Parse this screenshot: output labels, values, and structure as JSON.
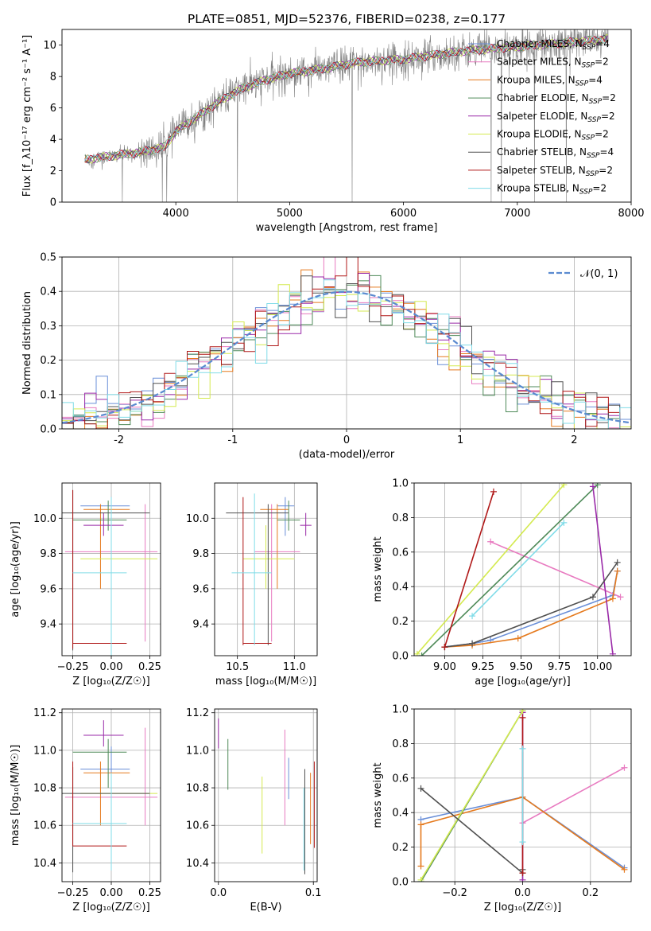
{
  "title": "PLATE=0851, MJD=52376, FIBERID=0238, z=0.177",
  "colors": {
    "Chabrier MILES": "#6a8fd8",
    "Salpeter MILES": "#e87ac0",
    "Kroupa MILES": "#e57a1e",
    "Chabrier ELODIE": "#4e8a58",
    "Salpeter ELODIE": "#9a2aa8",
    "Kroupa ELODIE": "#d4ea50",
    "Chabrier STELIB": "#505050",
    "Salpeter STELIB": "#b01818",
    "Kroupa STELIB": "#80dce8",
    "data": "#808080",
    "normal": "#5a8ad0"
  },
  "chart_data": [
    {
      "id": "spectrum",
      "type": "line",
      "xlabel": "wavelength [Angstrom, rest frame]",
      "ylabel": "Flux [f_λ10⁻¹⁷ erg cm⁻² s⁻¹ A⁻¹]",
      "xlim": [
        3000,
        8000
      ],
      "ylim": [
        0,
        11
      ],
      "xticks": [
        4000,
        5000,
        6000,
        7000,
        8000
      ],
      "yticks": [
        0,
        2,
        4,
        6,
        8,
        10
      ],
      "legend_position": "top-right",
      "legend": [
        {
          "label": "Chabrier MILES, N",
          "sub": "SSP",
          "tail": "=4",
          "series": "Chabrier MILES"
        },
        {
          "label": "Salpeter MILES, N",
          "sub": "SSP",
          "tail": "=2",
          "series": "Salpeter MILES"
        },
        {
          "label": "Kroupa MILES, N",
          "sub": "SSP",
          "tail": "=4",
          "series": "Kroupa MILES"
        },
        {
          "label": "Chabrier ELODIE, N",
          "sub": "SSP",
          "tail": "=2",
          "series": "Chabrier ELODIE"
        },
        {
          "label": "Salpeter ELODIE, N",
          "sub": "SSP",
          "tail": "=2",
          "series": "Salpeter ELODIE"
        },
        {
          "label": "Kroupa ELODIE, N",
          "sub": "SSP",
          "tail": "=2",
          "series": "Kroupa ELODIE"
        },
        {
          "label": "Chabrier STELIB, N",
          "sub": "SSP",
          "tail": "=4",
          "series": "Chabrier STELIB"
        },
        {
          "label": "Salpeter STELIB, N",
          "sub": "SSP",
          "tail": "=2",
          "series": "Salpeter STELIB"
        },
        {
          "label": "Kroupa STELIB, N",
          "sub": "SSP",
          "tail": "=2",
          "series": "Kroupa STELIB"
        }
      ],
      "continuum": [
        [
          3200,
          2.7
        ],
        [
          3500,
          3.0
        ],
        [
          3700,
          3.2
        ],
        [
          3900,
          3.5
        ],
        [
          4000,
          4.5
        ],
        [
          4200,
          5.5
        ],
        [
          4400,
          6.5
        ],
        [
          4600,
          7.3
        ],
        [
          4800,
          7.8
        ],
        [
          5000,
          8.2
        ],
        [
          5300,
          8.5
        ],
        [
          5600,
          8.9
        ],
        [
          6000,
          9.1
        ],
        [
          6500,
          9.6
        ],
        [
          7000,
          9.9
        ],
        [
          7500,
          10.2
        ],
        [
          7800,
          10.4
        ]
      ],
      "dropouts": [
        3530,
        3880,
        3920,
        4540,
        5550,
        6770,
        6860,
        7150,
        7430
      ],
      "model_range": [
        3200,
        7450
      ]
    },
    {
      "id": "residuals",
      "type": "histogram",
      "xlabel": "(data-model)/error",
      "ylabel": "Normed distribution",
      "xlim": [
        -2.5,
        2.5
      ],
      "ylim": [
        0,
        0.5
      ],
      "xticks": [
        -2,
        -1,
        0,
        1,
        2
      ],
      "yticks": [
        0.0,
        0.1,
        0.2,
        0.3,
        0.4,
        0.5
      ],
      "bin_width": 0.1,
      "legend_position": "top-right",
      "legend_label": "𝒩(0, 1)",
      "reference": "normal(0,1)"
    },
    {
      "id": "z-age",
      "type": "scatter",
      "xlabel": "Z [log₁₀(Z/Z☉)]",
      "ylabel": "age  [log₁₀(age/yr)]",
      "xlim": [
        -0.32,
        0.32
      ],
      "ylim": [
        9.22,
        10.2
      ],
      "xticks": [
        -0.25,
        0.0,
        0.25
      ],
      "xticklabels": [
        "−0.25",
        "0.00",
        "0.25"
      ],
      "yticks": [
        9.4,
        9.6,
        9.8,
        10.0
      ],
      "points": [
        {
          "series": "Chabrier MILES",
          "x": 0.0,
          "y": 10.07,
          "xe": [
            -0.2,
            0.12
          ],
          "ye": [
            9.95,
            10.12
          ]
        },
        {
          "series": "Salpeter MILES",
          "x": 0.22,
          "y": 9.81,
          "xe": [
            -0.3,
            0.3
          ],
          "ye": [
            9.3,
            10.08
          ]
        },
        {
          "series": "Kroupa MILES",
          "x": -0.07,
          "y": 10.05,
          "xe": [
            -0.18,
            0.12
          ],
          "ye": [
            9.6,
            10.08
          ]
        },
        {
          "series": "Chabrier ELODIE",
          "x": -0.02,
          "y": 9.99,
          "xe": [
            -0.25,
            0.1
          ],
          "ye": [
            9.93,
            10.1
          ]
        },
        {
          "series": "Salpeter ELODIE",
          "x": -0.05,
          "y": 9.96,
          "xe": [
            -0.18,
            0.08
          ],
          "ye": [
            9.9,
            10.03
          ]
        },
        {
          "series": "Kroupa ELODIE",
          "x": 0.0,
          "y": 9.77,
          "xe": [
            -0.2,
            0.3
          ],
          "ye": [
            9.6,
            9.96
          ]
        },
        {
          "series": "Chabrier STELIB",
          "x": -0.25,
          "y": 10.03,
          "xe": [
            -0.32,
            0.25
          ],
          "ye": [
            9.25,
            10.16
          ]
        },
        {
          "series": "Salpeter STELIB",
          "x": -0.25,
          "y": 9.29,
          "xe": [
            -0.25,
            0.1
          ],
          "ye": [
            9.26,
            10.16
          ]
        },
        {
          "series": "Kroupa STELIB",
          "x": 0.0,
          "y": 9.69,
          "xe": [
            -0.25,
            0.1
          ],
          "ye": [
            9.22,
            10.12
          ]
        }
      ]
    },
    {
      "id": "mass-age",
      "type": "scatter",
      "xlabel": "mass [log₁₀(M/M☉)]",
      "ylabel": "",
      "xlim": [
        10.3,
        11.2
      ],
      "ylim": [
        9.22,
        10.2
      ],
      "xticks": [
        10.5,
        11.0
      ],
      "xticklabels": [
        "10.5",
        "11.0"
      ],
      "yticks": [
        9.4,
        9.6,
        9.8,
        10.0
      ],
      "points": [
        {
          "series": "Chabrier MILES",
          "x": 10.92,
          "y": 10.07,
          "xe": [
            10.85,
            11.0
          ],
          "ye": [
            9.9,
            10.12
          ]
        },
        {
          "series": "Salpeter MILES",
          "x": 10.8,
          "y": 9.81,
          "xe": [
            10.65,
            11.05
          ],
          "ye": [
            9.3,
            10.08
          ]
        },
        {
          "series": "Kroupa MILES",
          "x": 10.85,
          "y": 10.05,
          "xe": [
            10.7,
            10.95
          ],
          "ye": [
            9.6,
            10.08
          ]
        },
        {
          "series": "Chabrier ELODIE",
          "x": 10.95,
          "y": 9.99,
          "xe": [
            10.85,
            11.05
          ],
          "ye": [
            9.93,
            10.1
          ]
        },
        {
          "series": "Salpeter ELODIE",
          "x": 11.1,
          "y": 9.96,
          "xe": [
            11.05,
            11.15
          ],
          "ye": [
            9.9,
            10.03
          ]
        },
        {
          "series": "Kroupa ELODIE",
          "x": 10.75,
          "y": 9.77,
          "xe": [
            10.55,
            11.0
          ],
          "ye": [
            9.6,
            9.96
          ]
        },
        {
          "series": "Chabrier STELIB",
          "x": 10.77,
          "y": 10.03,
          "xe": [
            10.4,
            10.95
          ],
          "ye": [
            9.28,
            10.08
          ]
        },
        {
          "series": "Salpeter STELIB",
          "x": 10.55,
          "y": 9.29,
          "xe": [
            10.55,
            10.8
          ],
          "ye": [
            9.28,
            10.12
          ]
        },
        {
          "series": "Kroupa STELIB",
          "x": 10.65,
          "y": 9.69,
          "xe": [
            10.45,
            10.8
          ],
          "ye": [
            9.28,
            10.14
          ]
        }
      ]
    },
    {
      "id": "age-weight",
      "type": "line",
      "xlabel": "age  [log₁₀(age/yr)]",
      "ylabel": "mass weight",
      "xlim": [
        8.8,
        10.22
      ],
      "ylim": [
        0,
        1
      ],
      "xticks": [
        9.0,
        9.25,
        9.5,
        9.75,
        10.0
      ],
      "xticklabels": [
        "9.00",
        "9.25",
        "9.50",
        "9.75",
        "10.00"
      ],
      "yticks": [
        0.0,
        0.2,
        0.4,
        0.6,
        0.8,
        1.0
      ],
      "series": [
        {
          "name": "Chabrier MILES",
          "points": [
            [
              9.0,
              0.05
            ],
            [
              9.18,
              0.07
            ],
            [
              9.3,
              0.09
            ],
            [
              10.1,
              0.35
            ],
            [
              10.13,
              0.49
            ]
          ]
        },
        {
          "name": "Salpeter MILES",
          "points": [
            [
              9.3,
              0.66
            ],
            [
              10.15,
              0.34
            ]
          ]
        },
        {
          "name": "Kroupa MILES",
          "points": [
            [
              9.0,
              0.05
            ],
            [
              9.18,
              0.06
            ],
            [
              9.48,
              0.1
            ],
            [
              10.1,
              0.33
            ],
            [
              10.13,
              0.49
            ]
          ]
        },
        {
          "name": "Chabrier ELODIE",
          "points": [
            [
              8.85,
              0.0
            ],
            [
              10.0,
              0.99
            ]
          ]
        },
        {
          "name": "Salpeter ELODIE",
          "points": [
            [
              9.97,
              0.98
            ],
            [
              10.1,
              0.01
            ]
          ]
        },
        {
          "name": "Kroupa ELODIE",
          "points": [
            [
              8.82,
              0.01
            ],
            [
              9.78,
              0.99
            ]
          ]
        },
        {
          "name": "Chabrier STELIB",
          "points": [
            [
              9.0,
              0.05
            ],
            [
              9.18,
              0.07
            ],
            [
              9.97,
              0.34
            ],
            [
              10.13,
              0.54
            ]
          ]
        },
        {
          "name": "Salpeter STELIB",
          "points": [
            [
              9.0,
              0.05
            ],
            [
              9.32,
              0.95
            ]
          ]
        },
        {
          "name": "Kroupa STELIB",
          "points": [
            [
              9.18,
              0.23
            ],
            [
              9.78,
              0.77
            ]
          ]
        }
      ]
    },
    {
      "id": "z-mass",
      "type": "scatter",
      "xlabel": "Z [log₁₀(Z/Z☉)]",
      "ylabel": "mass [log₁₀(M/M☉)]",
      "xlim": [
        -0.32,
        0.32
      ],
      "ylim": [
        10.3,
        11.22
      ],
      "xticks": [
        -0.25,
        0.0,
        0.25
      ],
      "xticklabels": [
        "−0.25",
        "0.00",
        "0.25"
      ],
      "yticks": [
        10.4,
        10.6,
        10.8,
        11.0,
        11.2
      ],
      "points": [
        {
          "series": "Chabrier MILES",
          "x": 0.0,
          "y": 10.9,
          "xe": [
            -0.2,
            0.12
          ],
          "ye": [
            10.8,
            11.02
          ]
        },
        {
          "series": "Salpeter MILES",
          "x": 0.22,
          "y": 10.75,
          "xe": [
            -0.3,
            0.3
          ],
          "ye": [
            10.6,
            11.12
          ]
        },
        {
          "series": "Kroupa MILES",
          "x": -0.07,
          "y": 10.88,
          "xe": [
            -0.18,
            0.12
          ],
          "ye": [
            10.6,
            10.94
          ]
        },
        {
          "series": "Chabrier ELODIE",
          "x": -0.02,
          "y": 10.99,
          "xe": [
            -0.25,
            0.1
          ],
          "ye": [
            10.8,
            11.06
          ]
        },
        {
          "series": "Salpeter ELODIE",
          "x": -0.05,
          "y": 11.08,
          "xe": [
            -0.18,
            0.08
          ],
          "ye": [
            11.02,
            11.16
          ]
        },
        {
          "series": "Kroupa ELODIE",
          "x": 0.0,
          "y": 10.77,
          "xe": [
            -0.2,
            0.3
          ],
          "ye": [
            10.45,
            10.86
          ]
        },
        {
          "series": "Chabrier STELIB",
          "x": -0.25,
          "y": 10.77,
          "xe": [
            -0.32,
            0.25
          ],
          "ye": [
            10.35,
            10.91
          ]
        },
        {
          "series": "Salpeter STELIB",
          "x": -0.25,
          "y": 10.49,
          "xe": [
            -0.25,
            0.1
          ],
          "ye": [
            10.49,
            10.94
          ]
        },
        {
          "series": "Kroupa STELIB",
          "x": 0.0,
          "y": 10.61,
          "xe": [
            -0.25,
            0.1
          ],
          "ye": [
            10.36,
            10.88
          ]
        }
      ]
    },
    {
      "id": "ebv-mass",
      "type": "scatter",
      "xlabel": "E(B-V)",
      "ylabel": "",
      "xlim": [
        -0.004,
        0.104
      ],
      "ylim": [
        10.3,
        11.22
      ],
      "xticks": [
        0.0,
        0.1
      ],
      "xticklabels": [
        "0.0",
        "0.1"
      ],
      "yticks": [
        10.4,
        10.6,
        10.8,
        11.0,
        11.2
      ],
      "points": [
        {
          "series": "Chabrier MILES",
          "x": 0.074,
          "y": 10.85,
          "ye": [
            10.74,
            10.96
          ]
        },
        {
          "series": "Salpeter MILES",
          "x": 0.07,
          "y": 10.85,
          "ye": [
            10.6,
            11.11
          ]
        },
        {
          "series": "Kroupa MILES",
          "x": 0.097,
          "y": 10.7,
          "ye": [
            10.5,
            10.88
          ]
        },
        {
          "series": "Chabrier ELODIE",
          "x": 0.01,
          "y": 10.92,
          "ye": [
            10.79,
            11.06
          ]
        },
        {
          "series": "Salpeter ELODIE",
          "x": 0.0,
          "y": 11.08,
          "ye": [
            11.01,
            11.17
          ]
        },
        {
          "series": "Kroupa ELODIE",
          "x": 0.046,
          "y": 10.65,
          "ye": [
            10.45,
            10.86
          ]
        },
        {
          "series": "Chabrier STELIB",
          "x": 0.091,
          "y": 10.65,
          "ye": [
            10.34,
            10.9
          ]
        },
        {
          "series": "Salpeter STELIB",
          "x": 0.101,
          "y": 10.7,
          "ye": [
            10.48,
            10.94
          ]
        },
        {
          "series": "Kroupa STELIB",
          "x": 0.09,
          "y": 10.6,
          "ye": [
            10.36,
            10.8
          ]
        }
      ]
    },
    {
      "id": "z-weight",
      "type": "line",
      "xlabel": "Z [log₁₀(Z/Z☉)]",
      "ylabel": "mass weight",
      "xlim": [
        -0.32,
        0.32
      ],
      "ylim": [
        0,
        1
      ],
      "xticks": [
        -0.2,
        0.0,
        0.2
      ],
      "xticklabels": [
        "−0.2",
        "0.0",
        "0.2"
      ],
      "yticks": [
        0.0,
        0.2,
        0.4,
        0.6,
        0.8,
        1.0
      ],
      "series": [
        {
          "name": "Chabrier MILES",
          "points": [
            [
              -0.3,
              0.36
            ],
            [
              0.0,
              0.49
            ],
            [
              0.3,
              0.08
            ]
          ]
        },
        {
          "name": "Salpeter MILES",
          "points": [
            [
              0.0,
              0.34
            ],
            [
              0.3,
              0.66
            ]
          ]
        },
        {
          "name": "Kroupa MILES",
          "points": [
            [
              -0.3,
              0.09
            ],
            [
              -0.3,
              0.33
            ],
            [
              0.0,
              0.49
            ],
            [
              0.3,
              0.07
            ]
          ]
        },
        {
          "name": "Chabrier ELODIE",
          "points": [
            [
              -0.3,
              0.0
            ],
            [
              0.0,
              0.99
            ]
          ]
        },
        {
          "name": "Salpeter ELODIE",
          "points": [
            [
              0.0,
              0.01
            ],
            [
              0.0,
              0.98
            ]
          ]
        },
        {
          "name": "Kroupa ELODIE",
          "points": [
            [
              -0.3,
              0.01
            ],
            [
              0.0,
              0.99
            ]
          ]
        },
        {
          "name": "Chabrier STELIB",
          "points": [
            [
              -0.3,
              0.54
            ],
            [
              0.0,
              0.05
            ],
            [
              0.0,
              0.07
            ]
          ]
        },
        {
          "name": "Salpeter STELIB",
          "points": [
            [
              0.0,
              0.05
            ],
            [
              0.0,
              0.95
            ]
          ]
        },
        {
          "name": "Kroupa STELIB",
          "points": [
            [
              0.0,
              0.23
            ],
            [
              0.0,
              0.77
            ]
          ]
        }
      ]
    }
  ]
}
